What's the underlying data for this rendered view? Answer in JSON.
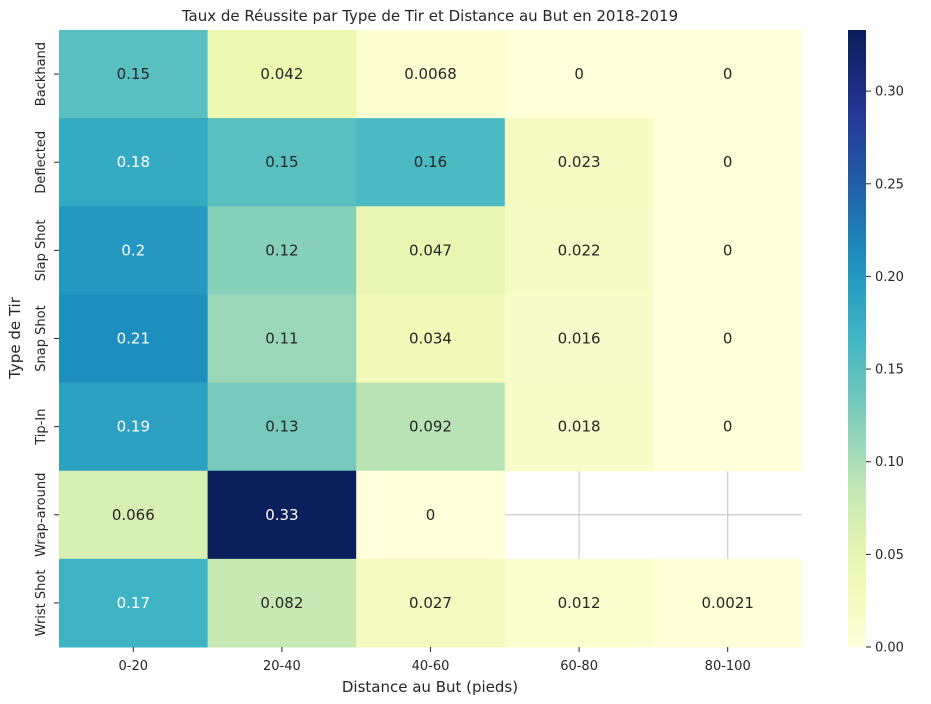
{
  "chart_data": {
    "type": "heatmap",
    "title": "Taux de Réussite par Type de Tir et Distance au But en 2018-2019",
    "xlabel": "Distance au But (pieds)",
    "ylabel": "Type de Tir",
    "x_categories": [
      "0-20",
      "20-40",
      "40-60",
      "60-80",
      "80-100"
    ],
    "y_categories": [
      "Backhand",
      "Deflected",
      "Slap Shot",
      "Snap Shot",
      "Tip-In",
      "Wrap-around",
      "Wrist Shot"
    ],
    "values": [
      [
        0.15,
        0.042,
        0.0068,
        0,
        0
      ],
      [
        0.18,
        0.15,
        0.16,
        0.023,
        0
      ],
      [
        0.2,
        0.12,
        0.047,
        0.022,
        0
      ],
      [
        0.21,
        0.11,
        0.034,
        0.016,
        0
      ],
      [
        0.19,
        0.13,
        0.092,
        0.018,
        0
      ],
      [
        0.066,
        0.33,
        0,
        null,
        null
      ],
      [
        0.17,
        0.082,
        0.027,
        0.012,
        0.0021
      ]
    ],
    "labels": [
      [
        "0.15",
        "0.042",
        "0.0068",
        "0",
        "0"
      ],
      [
        "0.18",
        "0.15",
        "0.16",
        "0.023",
        "0"
      ],
      [
        "0.2",
        "0.12",
        "0.047",
        "0.022",
        "0"
      ],
      [
        "0.21",
        "0.11",
        "0.034",
        "0.016",
        "0"
      ],
      [
        "0.19",
        "0.13",
        "0.092",
        "0.018",
        "0"
      ],
      [
        "0.066",
        "0.33",
        "0",
        "",
        ""
      ],
      [
        "0.17",
        "0.082",
        "0.027",
        "0.012",
        "0.0021"
      ]
    ],
    "colormap": "YlGnBu",
    "colorbar": {
      "range": [
        0,
        0.333
      ],
      "ticks": [
        0.0,
        0.05,
        0.1,
        0.15,
        0.2,
        0.25,
        0.3
      ],
      "tick_labels": [
        "0.00",
        "0.05",
        "0.10",
        "0.15",
        "0.20",
        "0.25",
        "0.30"
      ]
    },
    "grid": true
  },
  "colors": {
    "text_dark": "#262626",
    "text_light": "#ffffff",
    "grid": "#cccccc",
    "missing_background": "#ffffff"
  }
}
